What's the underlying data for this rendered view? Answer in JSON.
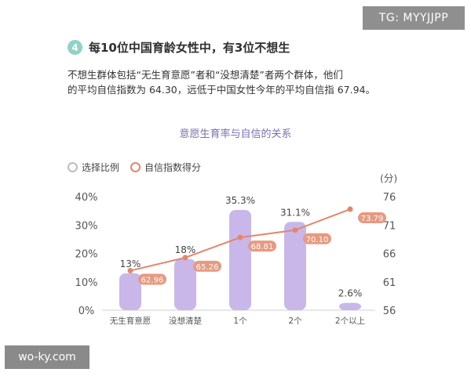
{
  "watermark_top": "TG: MYYJJPP",
  "watermark_bottom": "wo-ky.com",
  "section": {
    "number": "4",
    "title": "每10位中国育龄女性中，有3位不想生"
  },
  "description": [
    "不想生群体包括“无生育意愿”者和“没想清楚”者两个群体，他们",
    "的平均自信指数为 64.30，远低于中国女性今年的平均自信指 67.94。"
  ],
  "legend": {
    "bar_label": "选择比例",
    "line_label": "自信指数得分"
  },
  "colors": {
    "bar": "#c9b7ea",
    "line": "#e3876c",
    "label_box": "#e79a80",
    "axis_text": "#555555"
  },
  "chart_data": {
    "type": "bar",
    "title": "意愿生育率与自信的关系",
    "categories": [
      "无生育意愿",
      "没想清楚",
      "1个",
      "2个",
      "2个以上"
    ],
    "series": [
      {
        "name": "选择比例",
        "type": "bar",
        "axis": "left",
        "values": [
          13,
          18,
          35.3,
          31.1,
          2.6
        ],
        "labels": [
          "13%",
          "18%",
          "35.3%",
          "31.1%",
          "2.6%"
        ]
      },
      {
        "name": "自信指数得分",
        "type": "line",
        "axis": "right",
        "values": [
          62.96,
          65.26,
          68.81,
          70.1,
          73.79
        ],
        "labels": [
          "62.96",
          "65.26",
          "68.81",
          "70.10",
          "73.79"
        ]
      }
    ],
    "y_left": {
      "ticks": [
        "0%",
        "10%",
        "20%",
        "30%",
        "40%"
      ],
      "values": [
        0,
        10,
        20,
        30,
        40
      ],
      "ylim": [
        0,
        40
      ]
    },
    "y_right": {
      "unit": "(分)",
      "ticks": [
        "56",
        "61",
        "66",
        "71",
        "76"
      ],
      "values": [
        56,
        61,
        66,
        71,
        76
      ],
      "ylim": [
        56,
        76
      ]
    },
    "legend_position": "top-left"
  }
}
